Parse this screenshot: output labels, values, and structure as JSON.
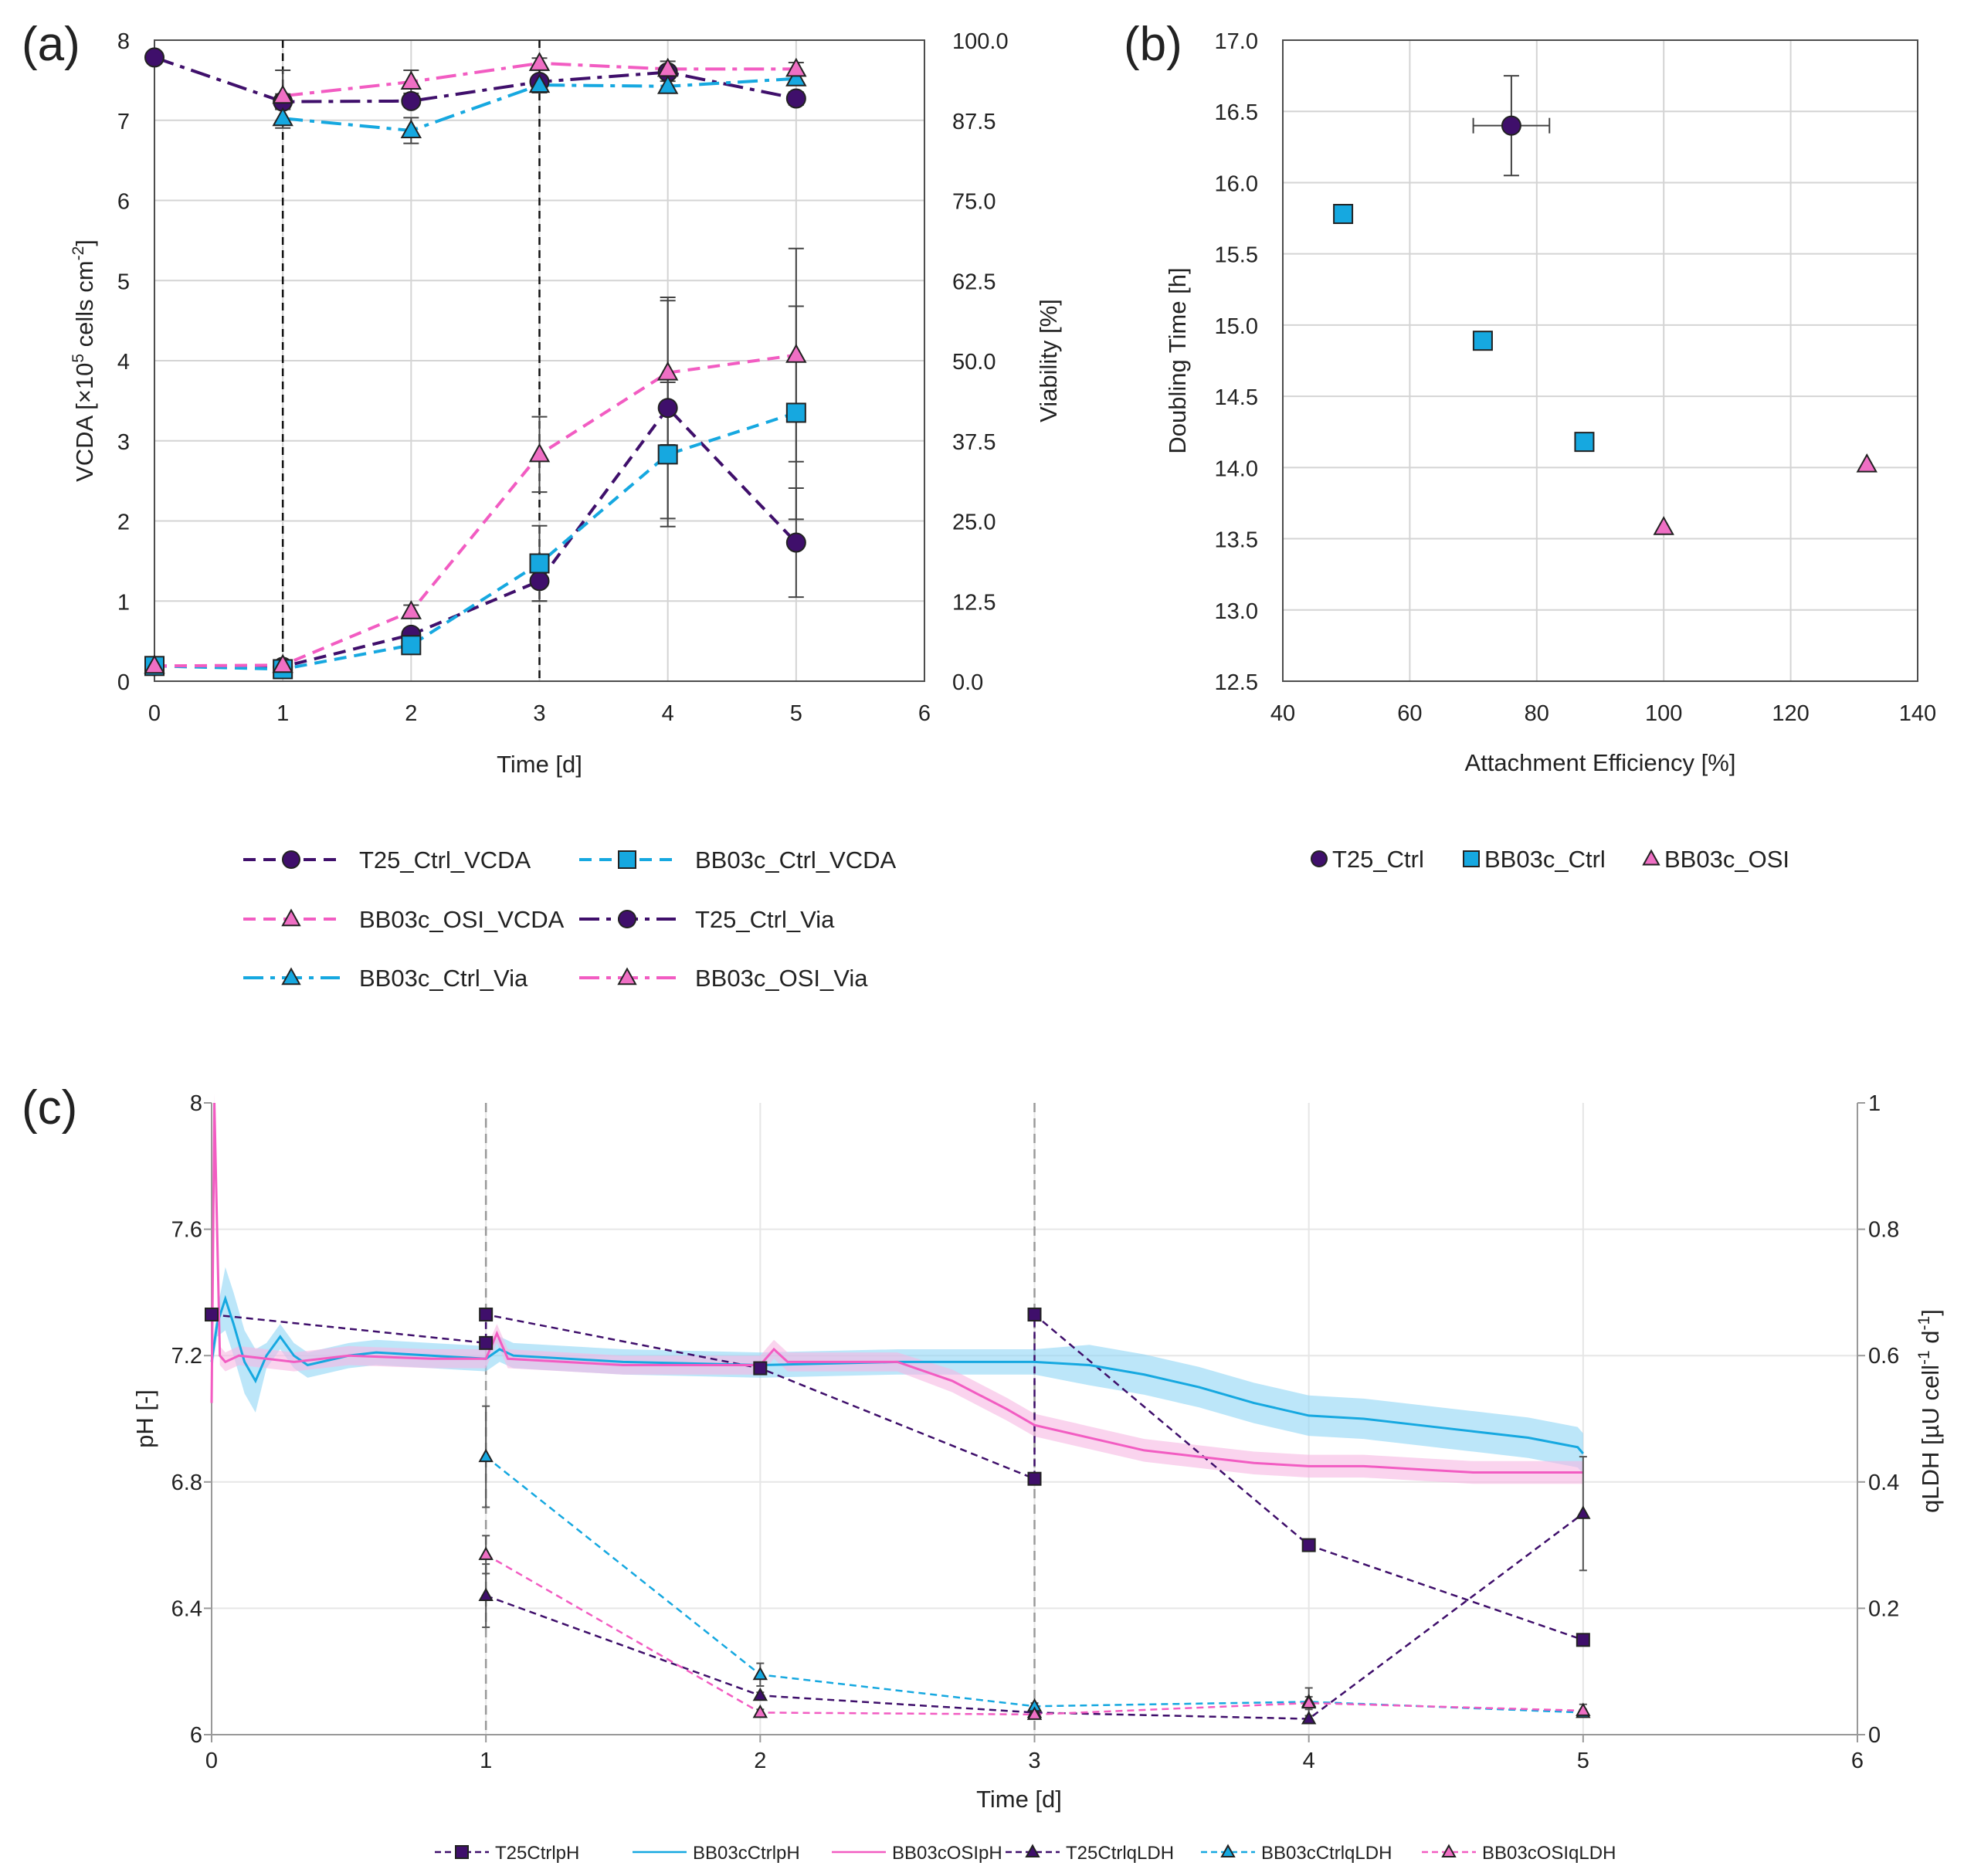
{
  "colors": {
    "purple": "#3f0f6b",
    "cyan": "#16a8e0",
    "pink": "#f25cc2",
    "pink_fill": "#ef6fc4",
    "band_cyan": "#8fd6f5",
    "band_pink": "#f7b8e2"
  },
  "chart_data": [
    {
      "panel": "(a)",
      "type": "line",
      "xlabel": "Time [d]",
      "ylabel": "VCDA [×10⁵ cells cm⁻²]",
      "ylabel_main": "VCDA [×10",
      "ylabel_exp": "5",
      "ylabel_mid": " cells cm",
      "ylabel_exp2": "-2",
      "ylabel_end": "]",
      "y2label": "Viability [%]",
      "xlim": [
        0,
        6
      ],
      "ylim": [
        0,
        8
      ],
      "y2lim": [
        0,
        100
      ],
      "xticks": [
        "0",
        "1",
        "2",
        "3",
        "4",
        "5",
        "6"
      ],
      "yticks": [
        "0",
        "1",
        "2",
        "3",
        "4",
        "5",
        "6",
        "7",
        "8"
      ],
      "y2ticks": [
        "0.0",
        "12.5",
        "25.0",
        "37.5",
        "50.0",
        "62.5",
        "75.0",
        "87.5",
        "100.0"
      ],
      "vlines": [
        1,
        3
      ],
      "legend_placement": "bottom",
      "series": [
        {
          "name": "T25_Ctrl_VCDA",
          "axis": "left",
          "color": "purple",
          "dash": "dash",
          "marker": "circle",
          "x": [
            0,
            1,
            2,
            3,
            4,
            5
          ],
          "values": [
            0.19,
            0.18,
            0.58,
            1.25,
            3.41,
            1.73
          ],
          "err": [
            0.03,
            0.03,
            0.05,
            0.25,
            1.38,
            0.68
          ]
        },
        {
          "name": "BB03c_Ctrl_VCDA",
          "axis": "left",
          "color": "cyan",
          "dash": "dash",
          "marker": "square",
          "x": [
            0,
            1,
            2,
            3,
            4,
            5
          ],
          "values": [
            0.19,
            0.15,
            0.45,
            1.47,
            2.83,
            3.35
          ],
          "err": [
            0.03,
            0.03,
            0.05,
            0.47,
            0.9,
            1.33
          ]
        },
        {
          "name": "BB03c_OSI_VCDA",
          "axis": "left",
          "color": "pink",
          "dash": "dash",
          "marker": "triangle",
          "x": [
            0,
            1,
            2,
            3,
            4,
            5
          ],
          "values": [
            0.19,
            0.2,
            0.87,
            2.83,
            3.85,
            4.07
          ],
          "err": [
            0.03,
            0.03,
            0.08,
            0.47,
            0.9,
            1.33
          ]
        },
        {
          "name": "T25_Ctrl_Via",
          "axis": "right",
          "color": "purple",
          "dash": "dashdot",
          "marker": "circle",
          "x": [
            0,
            1,
            2,
            3,
            4,
            5
          ],
          "values": [
            97.3,
            90.4,
            90.5,
            93.5,
            95.0,
            90.9
          ],
          "err": [
            0,
            1.2,
            0,
            0,
            0,
            1.0
          ]
        },
        {
          "name": "BB03c_Ctrl_Via",
          "axis": "right",
          "color": "cyan",
          "dash": "dashdot",
          "marker": "triangle",
          "x": [
            1,
            2,
            3,
            4,
            5
          ],
          "values": [
            87.8,
            85.9,
            93.0,
            92.8,
            94.0
          ],
          "err": [
            1.5,
            2.0,
            1.2,
            0.8,
            0.5
          ]
        },
        {
          "name": "BB03c_OSI_Via",
          "axis": "right",
          "color": "pink",
          "dash": "dashdot",
          "marker": "triangle",
          "x": [
            1,
            2,
            3,
            4,
            5
          ],
          "values": [
            91.3,
            93.5,
            96.4,
            95.5,
            95.5
          ],
          "err": [
            4.0,
            1.8,
            0.8,
            1.2,
            1.0
          ]
        }
      ],
      "legend": [
        "T25_Ctrl_VCDA",
        "BB03c_Ctrl_VCDA",
        "BB03c_OSI_VCDA",
        "T25_Ctrl_Via",
        "BB03c_Ctrl_Via",
        "BB03c_OSI_Via"
      ]
    },
    {
      "panel": "(b)",
      "type": "scatter",
      "xlabel": "Attachment Efficiency [%]",
      "ylabel": "Doubling Time [h]",
      "xlim": [
        40,
        140
      ],
      "ylim": [
        12.5,
        17.0
      ],
      "xticks": [
        "40",
        "60",
        "80",
        "100",
        "120",
        "140"
      ],
      "yticks": [
        "12.5",
        "13.0",
        "13.5",
        "14.0",
        "14.5",
        "15.0",
        "15.5",
        "16.0",
        "16.5",
        "17.0"
      ],
      "legend_placement": "bottom",
      "series": [
        {
          "name": "T25_Ctrl",
          "color": "purple",
          "marker": "circle",
          "x": [
            76
          ],
          "values": [
            16.4
          ],
          "xerr": [
            6
          ],
          "yerr": [
            0.35
          ]
        },
        {
          "name": "BB03c_Ctrl",
          "color": "cyan",
          "marker": "square",
          "x": [
            49.5,
            71.5,
            87.5
          ],
          "values": [
            15.78,
            14.89,
            14.18
          ]
        },
        {
          "name": "BB03c_OSI",
          "color": "pink",
          "marker": "triangle",
          "x": [
            100,
            132
          ],
          "values": [
            13.58,
            14.02
          ]
        }
      ],
      "legend": [
        "T25_Ctrl",
        "BB03c_Ctrl",
        "BB03c_OSI"
      ]
    },
    {
      "panel": "(c)",
      "type": "line",
      "xlabel": "Time [d]",
      "ylabel": "pH [-]",
      "y2label": "qLDH [µU cell⁻¹ d⁻¹]",
      "y2label_main": "qLDH [µU cell",
      "y2label_exp1": "-1",
      "y2label_mid": " d",
      "y2label_exp2": "-1",
      "y2label_end": "]",
      "xlim": [
        0,
        6
      ],
      "ylim": [
        6,
        8
      ],
      "y2lim": [
        0,
        1
      ],
      "xticks": [
        "0",
        "1",
        "2",
        "3",
        "4",
        "5",
        "6"
      ],
      "yticks": [
        "6",
        "6.4",
        "6.8",
        "7.2",
        "7.6",
        "8"
      ],
      "y2ticks": [
        "0",
        "0.2",
        "0.4",
        "0.6",
        "0.8",
        "1"
      ],
      "vlines": [
        1,
        3
      ],
      "legend_placement": "bottom",
      "series": [
        {
          "name": "T25CtrlpH",
          "axis": "left",
          "color": "purple",
          "dash": "dash",
          "marker": "square",
          "x": [
            0,
            1,
            1,
            2,
            3,
            3,
            4,
            5
          ],
          "values": [
            7.33,
            7.24,
            7.33,
            7.16,
            6.81,
            7.33,
            6.6,
            6.3
          ]
        },
        {
          "name": "BB03cCtrlpH",
          "axis": "left",
          "color": "cyan",
          "dash": "solid",
          "marker": "none",
          "band": 0.04,
          "x": [
            0,
            0.02,
            0.05,
            0.08,
            0.12,
            0.16,
            0.2,
            0.25,
            0.3,
            0.35,
            0.4,
            0.5,
            0.6,
            0.8,
            1.0,
            1.05,
            1.1,
            1.5,
            2.0,
            2.5,
            2.8,
            3.0,
            3.2,
            3.4,
            3.6,
            3.8,
            4.0,
            4.2,
            4.4,
            4.6,
            4.8,
            4.98,
            5.0
          ],
          "values": [
            7.18,
            7.3,
            7.38,
            7.3,
            7.18,
            7.12,
            7.2,
            7.26,
            7.2,
            7.17,
            7.18,
            7.2,
            7.21,
            7.2,
            7.19,
            7.22,
            7.2,
            7.18,
            7.17,
            7.18,
            7.18,
            7.18,
            7.17,
            7.14,
            7.1,
            7.05,
            7.01,
            7.0,
            6.98,
            6.96,
            6.94,
            6.91,
            6.89
          ]
        },
        {
          "name": "BB03cOSIpH",
          "axis": "left",
          "color": "pink",
          "dash": "solid",
          "marker": "none",
          "band": 0.03,
          "x": [
            0,
            0.01,
            0.02,
            0.03,
            0.05,
            0.1,
            0.2,
            0.3,
            0.5,
            0.8,
            1.0,
            1.04,
            1.08,
            1.5,
            2.0,
            2.05,
            2.1,
            2.5,
            2.7,
            2.9,
            3.0,
            3.2,
            3.4,
            3.6,
            3.8,
            4.0,
            4.2,
            4.4,
            4.6,
            4.8,
            5.0
          ],
          "values": [
            7.05,
            8.0,
            7.6,
            7.2,
            7.18,
            7.2,
            7.19,
            7.18,
            7.2,
            7.19,
            7.19,
            7.27,
            7.19,
            7.17,
            7.17,
            7.22,
            7.18,
            7.18,
            7.12,
            7.03,
            6.98,
            6.94,
            6.9,
            6.88,
            6.86,
            6.85,
            6.85,
            6.84,
            6.83,
            6.83,
            6.83
          ]
        },
        {
          "name": "T25CtrlqLDH",
          "axis": "right",
          "color": "purple",
          "dash": "dash",
          "marker": "triangle",
          "x": [
            1,
            2,
            3,
            4,
            5
          ],
          "values": [
            0.22,
            0.062,
            0.035,
            0.025,
            0.35
          ],
          "err": [
            0.05,
            0.005,
            0.005,
            0.005,
            0.09
          ]
        },
        {
          "name": "BB03cCtrlqLDH",
          "axis": "right",
          "color": "cyan",
          "dash": "dash",
          "marker": "triangle",
          "x": [
            1,
            2,
            3,
            4,
            5
          ],
          "values": [
            0.44,
            0.095,
            0.045,
            0.052,
            0.035
          ],
          "err": [
            0.08,
            0.018,
            0.005,
            0.022,
            0.005
          ]
        },
        {
          "name": "BB03cOSIqLDH",
          "axis": "right",
          "color": "pink",
          "dash": "dash",
          "marker": "triangle",
          "x": [
            1,
            2,
            3,
            4,
            5
          ],
          "values": [
            0.285,
            0.035,
            0.032,
            0.05,
            0.038
          ],
          "err": [
            0.03,
            0.005,
            0.005,
            0.01,
            0.01
          ]
        }
      ],
      "legend": [
        "T25CtrlpH",
        "BB03cCtrlpH",
        "BB03cOSIpH",
        "T25CtrlqLDH",
        "BB03cCtrlqLDH",
        "BB03cOSIqLDH"
      ]
    }
  ]
}
